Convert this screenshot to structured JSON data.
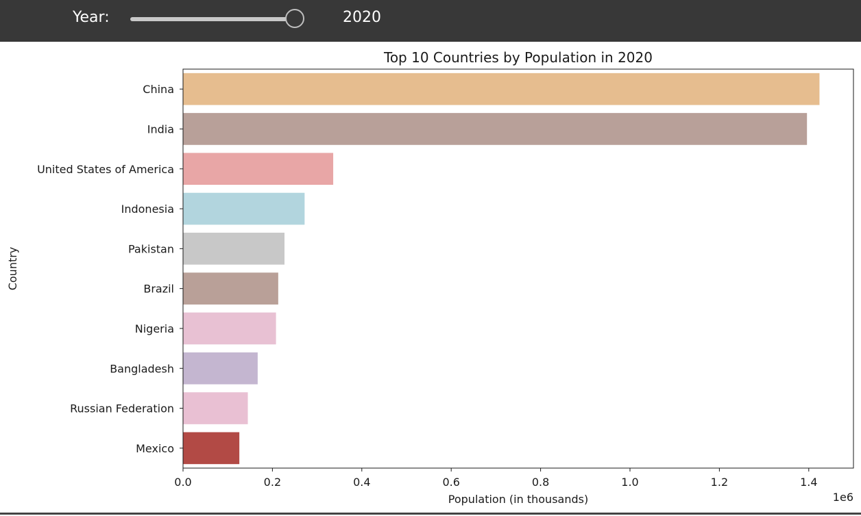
{
  "controls": {
    "year_label": "Year:",
    "year_value": "2020",
    "slider_fraction": 1.0
  },
  "chart_data": {
    "type": "bar",
    "orientation": "horizontal",
    "title": "Top 10 Countries by Population in 2020",
    "xlabel": "Population (in thousands)",
    "ylabel": "Country",
    "x_offset_label": "1e6",
    "xlim": [
      0,
      1.5
    ],
    "x_ticks": [
      0.0,
      0.2,
      0.4,
      0.6,
      0.8,
      1.0,
      1.2,
      1.4
    ],
    "x_tick_labels": [
      "0.0",
      "0.2",
      "0.4",
      "0.6",
      "0.8",
      "1.0",
      "1.2",
      "1.4"
    ],
    "grid": false,
    "categories": [
      "China",
      "India",
      "United States of America",
      "Indonesia",
      "Pakistan",
      "Brazil",
      "Nigeria",
      "Bangladesh",
      "Russian Federation",
      "Mexico"
    ],
    "values": [
      1.424,
      1.396,
      0.336,
      0.272,
      0.227,
      0.213,
      0.208,
      0.167,
      0.145,
      0.126
    ],
    "colors": [
      "#e6bd8f",
      "#b8a099",
      "#e8a6a6",
      "#b2d5de",
      "#c8c8c8",
      "#b9a098",
      "#e8c1d3",
      "#c4b6d0",
      "#e9c0d3",
      "#b24a45"
    ]
  }
}
